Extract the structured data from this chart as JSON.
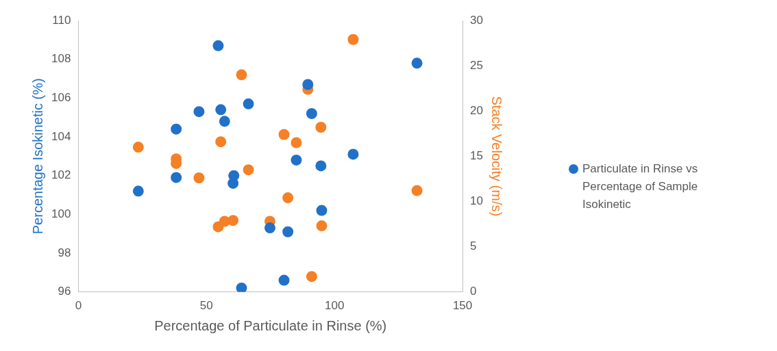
{
  "chart_data": {
    "type": "scatter",
    "xlabel": "Percentage of Particulate in Rinse (%)",
    "ylabel": "Percentage Isokinetic (%)",
    "y2label": "Stack Velocity (m/s)",
    "x": [
      23.4,
      38.2,
      38.2,
      47.1,
      54.6,
      55.6,
      57.1,
      60.7,
      60.4,
      63.7,
      66.4,
      74.8,
      80.3,
      81.8,
      85.1,
      89.6,
      91.1,
      94.7,
      95.0,
      107.3,
      132.2
    ],
    "series": [
      {
        "name": "Particulate in Rinse vs Percentage of Sample Isokinetic",
        "color": "#2271c9",
        "values": [
          101.2,
          104.4,
          101.9,
          105.3,
          108.7,
          105.4,
          104.8,
          102.0,
          101.6,
          96.2,
          105.7,
          99.3,
          96.6,
          99.1,
          102.8,
          106.7,
          105.2,
          102.5,
          100.2,
          103.1,
          107.8
        ]
      },
      {
        "color": "#f58025",
        "axis": "y2",
        "values": [
          16.0,
          14.7,
          14.2,
          12.6,
          7.2,
          16.6,
          7.8,
          null,
          7.9,
          24.0,
          13.5,
          7.8,
          17.4,
          10.4,
          16.5,
          22.4,
          1.7,
          18.2,
          7.3,
          27.9,
          11.2
        ]
      }
    ],
    "xlim": [
      0,
      150
    ],
    "xticks": [
      0,
      50,
      100,
      150
    ],
    "ylim": [
      96,
      110
    ],
    "yticks": [
      96,
      98,
      100,
      102,
      104,
      106,
      108,
      110
    ],
    "y2lim": [
      0,
      30
    ],
    "y2ticks": [
      0,
      5,
      10,
      15,
      20,
      25,
      30
    ],
    "grid": false,
    "legend": "right",
    "marker": "circle"
  }
}
